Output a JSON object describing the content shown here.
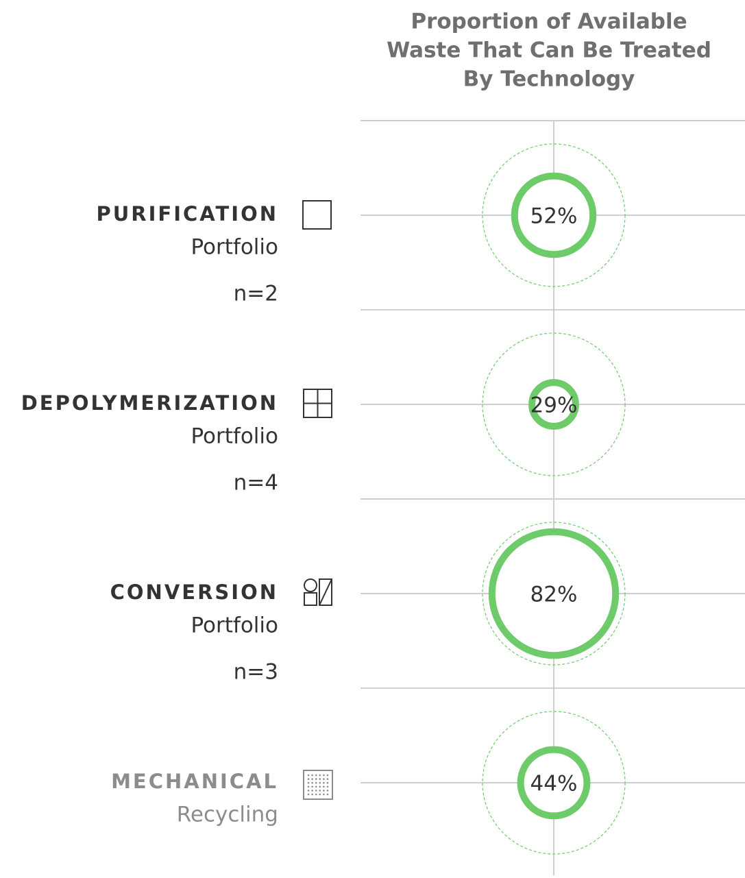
{
  "chart_data": {
    "type": "bubble",
    "title": [
      "Proportion of Available",
      "Waste That Can Be Treated",
      "By Technology"
    ],
    "categories": [
      "PURIFICATION",
      "DEPOLYMERIZATION",
      "CONVERSION",
      "MECHANICAL"
    ],
    "subtitles": [
      "Portfolio",
      "Portfolio",
      "Portfolio",
      "Recycling"
    ],
    "n_labels": [
      "n=2",
      "n=4",
      "n=3",
      null
    ],
    "muted": [
      false,
      false,
      false,
      true
    ],
    "values": [
      52,
      29,
      82,
      44
    ],
    "value_labels": [
      "52%",
      "29%",
      "82%",
      "44%"
    ],
    "color": "#6dcb6a"
  }
}
